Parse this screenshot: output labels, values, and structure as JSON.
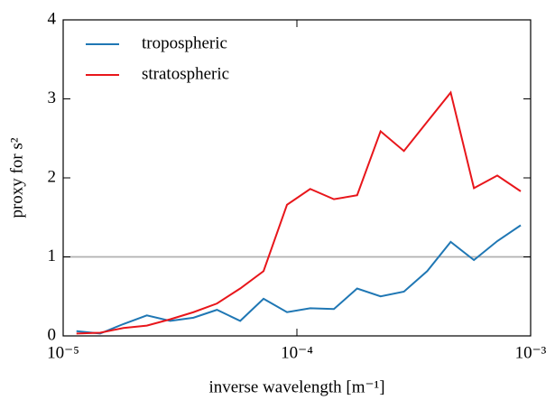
{
  "chart_data": {
    "type": "line",
    "xlabel": "inverse wavelength [m⁻¹]",
    "ylabel": "proxy for s²",
    "x": [
      1.14e-05,
      1.44e-05,
      1.81e-05,
      2.28e-05,
      2.87e-05,
      3.61e-05,
      4.55e-05,
      5.72e-05,
      7.2e-05,
      9.07e-05,
      0.000114,
      0.000144,
      0.000181,
      0.000228,
      0.000287,
      0.000361,
      0.000455,
      0.000572,
      0.00072,
      0.000907
    ],
    "series": [
      {
        "name": "tropospheric",
        "color": "#1f77b4",
        "values": [
          0.06,
          0.03,
          0.15,
          0.26,
          0.19,
          0.23,
          0.33,
          0.19,
          0.47,
          0.3,
          0.35,
          0.34,
          0.6,
          0.5,
          0.56,
          0.82,
          1.19,
          0.96,
          1.2,
          1.4
        ]
      },
      {
        "name": "stratospheric",
        "color": "#e8161b",
        "values": [
          0.03,
          0.04,
          0.1,
          0.13,
          0.21,
          0.3,
          0.41,
          0.6,
          0.82,
          1.66,
          1.86,
          1.73,
          1.78,
          2.59,
          2.34,
          2.71,
          3.08,
          1.87,
          2.03,
          1.83
        ]
      }
    ],
    "xscale": "log",
    "xlim": [
      1e-05,
      0.001
    ],
    "xticks": [
      {
        "value": 1e-05,
        "label": "10⁻⁵"
      },
      {
        "value": 0.0001,
        "label": "10⁻⁴"
      },
      {
        "value": 0.001,
        "label": "10⁻³"
      }
    ],
    "ylim": [
      0,
      4
    ],
    "yticks": [
      0,
      1,
      2,
      3,
      4
    ],
    "hline": {
      "y": 1,
      "color": "#b0b0b0"
    },
    "legend": "upper left"
  }
}
